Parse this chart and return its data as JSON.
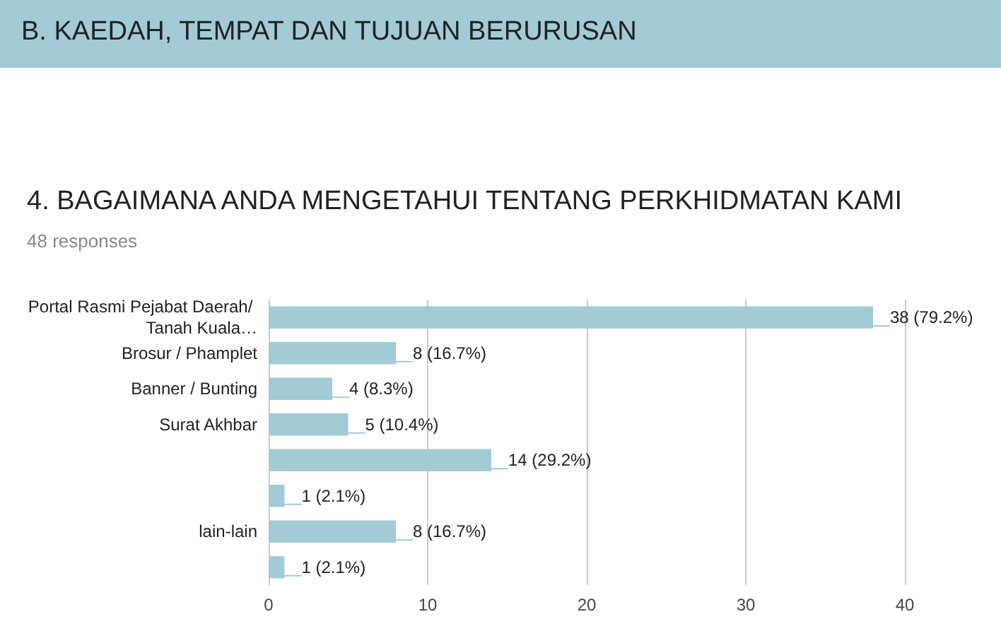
{
  "chart_data": {
    "type": "bar",
    "orientation": "horizontal",
    "title": "4. BAGAIMANA ANDA MENGETAHUI TENTANG PERKHIDMATAN KAMI",
    "subtitle": "48 responses",
    "annotations": [
      "B. KAEDAH, TEMPAT DAN TUJUAN BERURUSAN"
    ],
    "categories": [
      "Portal Rasmi Pejabat Daerah/ Tanah Kuala…",
      "Brosur / Phamplet",
      "Banner / Bunting",
      "Surat Akhbar",
      null,
      null,
      "lain-lain",
      null
    ],
    "values": [
      38,
      8,
      4,
      5,
      14,
      1,
      8,
      1
    ],
    "value_labels": [
      "38 (79.2%)",
      "8 (16.7%)",
      "4 (8.3%)",
      "5 (10.4%)",
      "14 (29.2%)",
      "1 (2.1%)",
      "8 (16.7%)",
      "1 (2.1%)"
    ],
    "color": "#a2cbd6",
    "xlim": [
      0,
      40
    ],
    "xticks": [
      0,
      10,
      20,
      30,
      40
    ],
    "grid": "x"
  }
}
